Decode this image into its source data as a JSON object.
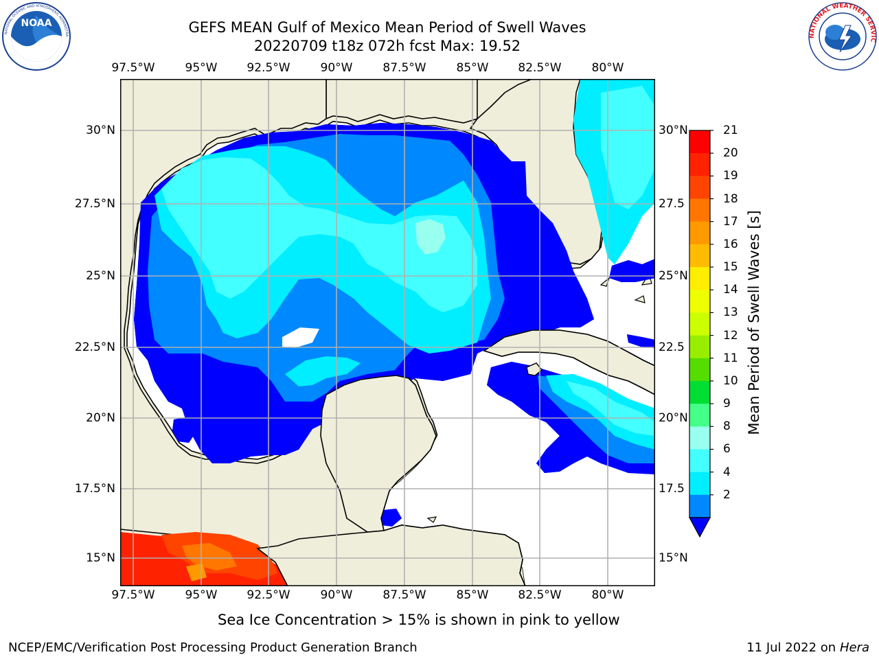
{
  "header": {
    "title_line1": "GEFS MEAN Gulf of Mexico Mean Period of Swell Waves",
    "title_line2": "20220709 t18z 072h fcst   Max: 19.52"
  },
  "logos": {
    "noaa_text": "NOAA",
    "noaa_ring_text": "NATIONAL OCEANIC AND ATMOSPHERIC ADMINISTRATION · U.S. DEPARTMENT OF COMMERCE",
    "nws_ring_text": "NATIONAL WEATHER SERVICE"
  },
  "map": {
    "lon_ticks": [
      "97.5°W",
      "95°W",
      "92.5°W",
      "90°W",
      "87.5°W",
      "85°W",
      "82.5°W",
      "80°W"
    ],
    "lat_ticks_left": [
      "30°N",
      "27.5°N",
      "25°N",
      "22.5°N",
      "20°N",
      "17.5°N",
      "15°N"
    ],
    "lat_ticks_right": [
      "30°N",
      "27.5",
      "25°N",
      "22.5",
      "20°N",
      "17.5",
      "15°N"
    ],
    "colors": {
      "land": "#efeedb",
      "grid": "#b0b0b0"
    }
  },
  "colorbar": {
    "title": "Mean Period of Swell Waves [s]",
    "labels": [
      "21",
      "20",
      "19",
      "18",
      "17",
      "16",
      "15",
      "14",
      "13",
      "12",
      "11",
      "10",
      "9",
      "8",
      "6",
      "4",
      "2"
    ],
    "levels": [
      {
        "label": "21",
        "color": "#ff0000"
      },
      {
        "label": "20",
        "color": "#ff2200"
      },
      {
        "label": "19",
        "color": "#ff4400"
      },
      {
        "label": "18",
        "color": "#ff7700"
      },
      {
        "label": "17",
        "color": "#ff9900"
      },
      {
        "label": "16",
        "color": "#ffbb00"
      },
      {
        "label": "15",
        "color": "#ffee00"
      },
      {
        "label": "14",
        "color": "#eeff00"
      },
      {
        "label": "13",
        "color": "#ccff00"
      },
      {
        "label": "12",
        "color": "#99ee00"
      },
      {
        "label": "11",
        "color": "#55dd00"
      },
      {
        "label": "10",
        "color": "#00dd33"
      },
      {
        "label": "9",
        "color": "#44ff88"
      },
      {
        "label": "8",
        "color": "#99ffee"
      },
      {
        "label": "6",
        "color": "#44ffff"
      },
      {
        "label": "4",
        "color": "#00eeff"
      },
      {
        "label": "2",
        "color": "#0088ff"
      },
      {
        "label": "",
        "color": "#0000ff"
      }
    ]
  },
  "note": "Sea Ice Concentration > 15% is shown in pink to yellow",
  "footer": {
    "left": "NCEP/EMC/Verification Post Processing Product Generation Branch",
    "right_date": "11 Jul 2022 on ",
    "right_host": "Hera"
  }
}
